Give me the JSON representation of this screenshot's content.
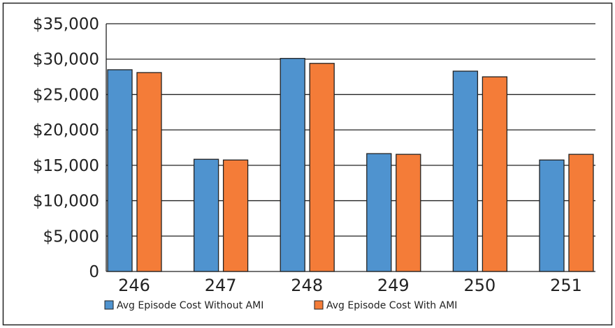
{
  "chart_data": {
    "type": "bar",
    "title": "",
    "xlabel": "",
    "ylabel": "",
    "categories": [
      "246",
      "247",
      "248",
      "249",
      "250",
      "251"
    ],
    "series": [
      {
        "name": "Avg Episode Cost Without AMI",
        "color": "#4f93cf",
        "values": [
          28500,
          15850,
          30100,
          16650,
          28300,
          15750
        ]
      },
      {
        "name": "Avg Episode Cost With AMI",
        "color": "#f47c38",
        "values": [
          28100,
          15750,
          29400,
          16550,
          27500,
          16550
        ]
      }
    ],
    "ylim": [
      0,
      35000
    ],
    "yticks": [
      0,
      5000,
      10000,
      15000,
      20000,
      25000,
      30000,
      35000
    ],
    "ytick_labels": [
      "0",
      "$5,000",
      "$10,000",
      "$15,000",
      "$20,000",
      "$25,000",
      "$30,000",
      "$35,000"
    ],
    "grid": true,
    "legend_position": "bottom"
  }
}
